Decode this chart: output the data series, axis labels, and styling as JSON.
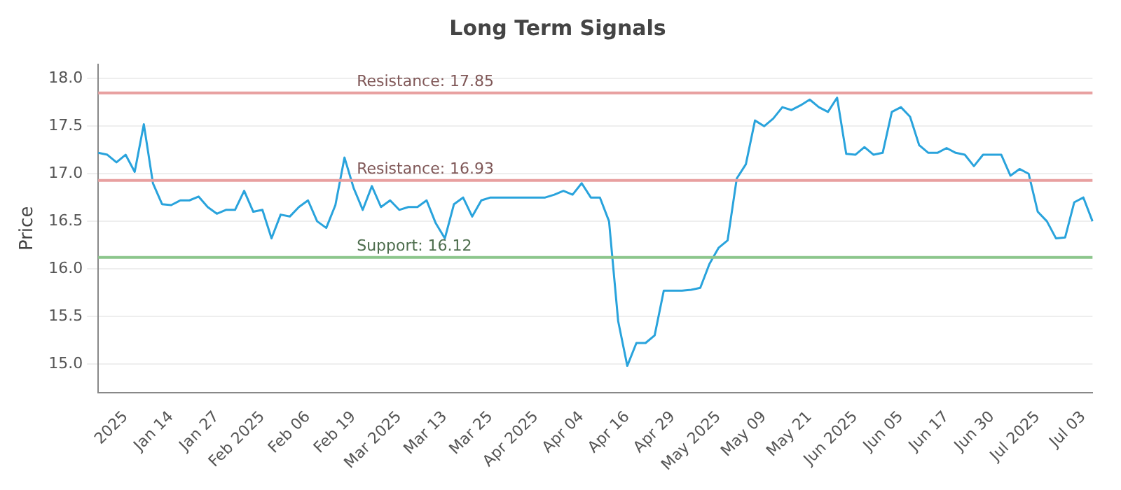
{
  "chart_data": {
    "type": "line",
    "title": "Long Term Signals",
    "ylabel": "Price",
    "categories": [
      null,
      null,
      null,
      "2025",
      null,
      null,
      null,
      null,
      "Jan 14",
      null,
      null,
      null,
      null,
      "Jan 27",
      null,
      null,
      null,
      null,
      "Feb 2025",
      null,
      null,
      null,
      null,
      "Feb 06",
      null,
      null,
      null,
      null,
      "Feb 19",
      null,
      null,
      null,
      null,
      "Mar 2025",
      null,
      null,
      null,
      null,
      "Mar 13",
      null,
      null,
      null,
      null,
      "Mar 25",
      null,
      null,
      null,
      null,
      "Apr 2025",
      null,
      null,
      null,
      null,
      "Apr 04",
      null,
      null,
      null,
      null,
      "Apr 16",
      null,
      null,
      null,
      null,
      "Apr 29",
      null,
      null,
      null,
      null,
      "May 2025",
      null,
      null,
      null,
      null,
      "May 09",
      null,
      null,
      null,
      null,
      "May 21",
      null,
      null,
      null,
      null,
      "Jun 2025",
      null,
      null,
      null,
      null,
      "Jun 05",
      null,
      null,
      null,
      null,
      "Jun 17",
      null,
      null,
      null,
      null,
      "Jun 30",
      null,
      null,
      null,
      null,
      "Jul 2025",
      null,
      null,
      null,
      null,
      "Jul 03",
      null
    ],
    "series": [
      {
        "color": "#29a3dc",
        "values": [
          17.22,
          17.2,
          17.12,
          17.2,
          17.02,
          17.52,
          16.9,
          16.68,
          16.67,
          16.72,
          16.72,
          16.76,
          16.65,
          16.58,
          16.62,
          16.62,
          16.82,
          16.6,
          16.62,
          16.32,
          16.57,
          16.55,
          16.65,
          16.72,
          16.5,
          16.43,
          16.67,
          17.17,
          16.85,
          16.62,
          16.87,
          16.65,
          16.72,
          16.62,
          16.65,
          16.65,
          16.72,
          16.48,
          16.32,
          16.68,
          16.75,
          16.55,
          16.72,
          16.75,
          16.75,
          16.75,
          16.75,
          16.75,
          16.75,
          16.75,
          16.78,
          16.82,
          16.78,
          16.9,
          16.75,
          16.75,
          16.5,
          15.45,
          14.98,
          15.22,
          15.22,
          15.3,
          15.77,
          15.77,
          15.77,
          15.78,
          15.8,
          16.05,
          16.22,
          16.3,
          16.95,
          17.1,
          17.56,
          17.5,
          17.58,
          17.7,
          17.67,
          17.72,
          17.78,
          17.7,
          17.65,
          17.8,
          17.21,
          17.2,
          17.28,
          17.2,
          17.22,
          17.65,
          17.7,
          17.6,
          17.3,
          17.22,
          17.22,
          17.27,
          17.22,
          17.2,
          17.08,
          17.2,
          17.2,
          17.2,
          16.98,
          17.05,
          17.0,
          16.6,
          16.5,
          16.32,
          16.33,
          16.7,
          16.75,
          16.5
        ]
      }
    ],
    "ylim": [
      14.7,
      18.15
    ],
    "yticks": [
      {
        "value": 15,
        "label": "15.0"
      },
      {
        "value": 15.5,
        "label": "15.5"
      },
      {
        "value": 16,
        "label": "16.0"
      },
      {
        "value": 16.5,
        "label": "16.5"
      },
      {
        "value": 17,
        "label": "17.0"
      },
      {
        "value": 17.5,
        "label": "17.5"
      },
      {
        "value": 18,
        "label": "18.0"
      }
    ],
    "grid": "y",
    "legend": false,
    "marker": "none",
    "line_style": "solid",
    "ref_lines": [
      {
        "axis": "y",
        "value": 17.85,
        "label": "Resistance: 17.85",
        "color": "#e8a0a0"
      },
      {
        "axis": "y",
        "value": 16.93,
        "label": "Resistance: 16.93",
        "color": "#e8a0a0"
      },
      {
        "axis": "y",
        "value": 16.12,
        "label": "Support: 16.12",
        "color": "#8cc68c"
      }
    ]
  }
}
